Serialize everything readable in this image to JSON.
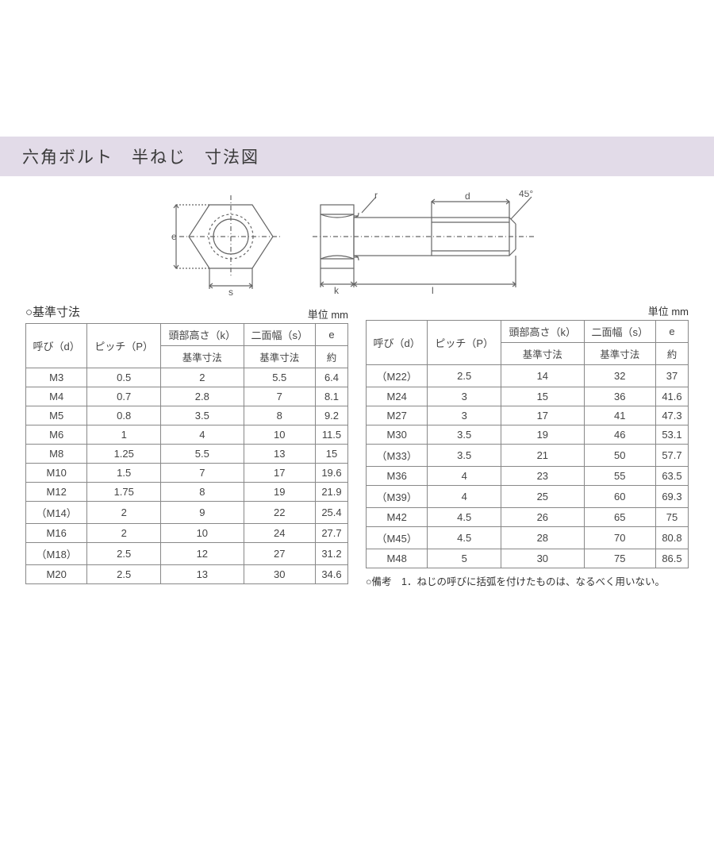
{
  "title": "六角ボルト　半ねじ　寸法図",
  "diagram": {
    "labels": {
      "e": "e",
      "s": "s",
      "r": "r",
      "d": "d",
      "k": "k",
      "l": "l",
      "angle": "45°"
    },
    "stroke": "#666666"
  },
  "tableLeft": {
    "caption": "○基準寸法",
    "unit": "単位 mm",
    "headers": {
      "d": "呼び（d）",
      "p": "ピッチ（P）",
      "k_top": "頭部高さ（k）",
      "k_sub": "基準寸法",
      "s_top": "二面幅（s）",
      "s_sub": "基準寸法",
      "e_top": "e",
      "e_sub": "約"
    },
    "rows": [
      [
        "M3",
        "0.5",
        "2",
        "5.5",
        "6.4"
      ],
      [
        "M4",
        "0.7",
        "2.8",
        "7",
        "8.1"
      ],
      [
        "M5",
        "0.8",
        "3.5",
        "8",
        "9.2"
      ],
      [
        "M6",
        "1",
        "4",
        "10",
        "11.5"
      ],
      [
        "M8",
        "1.25",
        "5.5",
        "13",
        "15"
      ],
      [
        "M10",
        "1.5",
        "7",
        "17",
        "19.6"
      ],
      [
        "M12",
        "1.75",
        "8",
        "19",
        "21.9"
      ],
      [
        "（M14）",
        "2",
        "9",
        "22",
        "25.4"
      ],
      [
        "M16",
        "2",
        "10",
        "24",
        "27.7"
      ],
      [
        "（M18）",
        "2.5",
        "12",
        "27",
        "31.2"
      ],
      [
        "M20",
        "2.5",
        "13",
        "30",
        "34.6"
      ]
    ]
  },
  "tableRight": {
    "unit": "単位 mm",
    "headers": {
      "d": "呼び（d）",
      "p": "ピッチ（P）",
      "k_top": "頭部高さ（k）",
      "k_sub": "基準寸法",
      "s_top": "二面幅（s）",
      "s_sub": "基準寸法",
      "e_top": "e",
      "e_sub": "約"
    },
    "rows": [
      [
        "（M22）",
        "2.5",
        "14",
        "32",
        "37"
      ],
      [
        "M24",
        "3",
        "15",
        "36",
        "41.6"
      ],
      [
        "M27",
        "3",
        "17",
        "41",
        "47.3"
      ],
      [
        "M30",
        "3.5",
        "19",
        "46",
        "53.1"
      ],
      [
        "（M33）",
        "3.5",
        "21",
        "50",
        "57.7"
      ],
      [
        "M36",
        "4",
        "23",
        "55",
        "63.5"
      ],
      [
        "（M39）",
        "4",
        "25",
        "60",
        "69.3"
      ],
      [
        "M42",
        "4.5",
        "26",
        "65",
        "75"
      ],
      [
        "（M45）",
        "4.5",
        "28",
        "70",
        "80.8"
      ],
      [
        "M48",
        "5",
        "30",
        "75",
        "86.5"
      ]
    ],
    "footnote": "○備考　1．ねじの呼びに括弧を付けたものは、なるべく用いない。"
  }
}
